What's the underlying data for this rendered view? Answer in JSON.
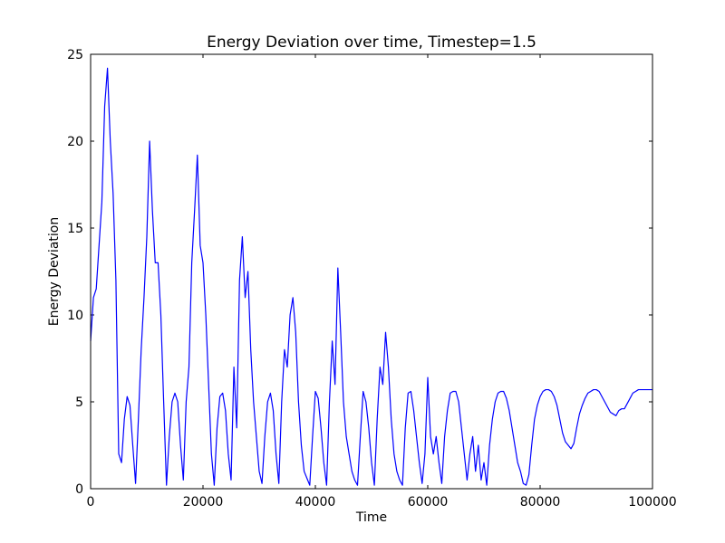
{
  "chart_data": {
    "type": "line",
    "title": "Energy Deviation over time, Timestep=1.5",
    "x_label": "Time",
    "y_label": "Energy Deviation",
    "color": "#0000ff",
    "xlim": [
      0,
      100000
    ],
    "ylim": [
      0,
      25
    ],
    "xticks": [
      0,
      20000,
      40000,
      60000,
      80000,
      100000
    ],
    "yticks": [
      0,
      5,
      10,
      15,
      20,
      25
    ],
    "grid": false,
    "x": [
      0,
      500,
      1000,
      1500,
      2000,
      2500,
      3000,
      3500,
      4000,
      4500,
      5000,
      5500,
      6000,
      6500,
      7000,
      7500,
      8000,
      8500,
      9000,
      9500,
      10000,
      10500,
      11000,
      11500,
      12000,
      12500,
      13000,
      13500,
      14000,
      14500,
      15000,
      15500,
      16000,
      16500,
      17000,
      17500,
      18000,
      18500,
      19000,
      19500,
      20000,
      20500,
      21000,
      21500,
      22000,
      22500,
      23000,
      23500,
      24000,
      24500,
      25000,
      25500,
      26000,
      26500,
      27000,
      27500,
      28000,
      28500,
      29000,
      29500,
      30000,
      30500,
      31000,
      31500,
      32000,
      32500,
      33000,
      33500,
      34000,
      34500,
      35000,
      35500,
      36000,
      36500,
      37000,
      37500,
      38000,
      38500,
      39000,
      39500,
      40000,
      40500,
      41000,
      41500,
      42000,
      42500,
      43000,
      43500,
      44000,
      44500,
      45000,
      45500,
      46000,
      46500,
      47000,
      47500,
      48000,
      48500,
      49000,
      49500,
      50000,
      50500,
      51000,
      51500,
      52000,
      52500,
      53000,
      53500,
      54000,
      54500,
      55000,
      55500,
      56000,
      56500,
      57000,
      57500,
      58000,
      58500,
      59000,
      59500,
      60000,
      60500,
      61000,
      61500,
      62000,
      62500,
      63000,
      63500,
      64000,
      64500,
      65000,
      65500,
      66000,
      66500,
      67000,
      67500,
      68000,
      68500,
      69000,
      69500,
      70000,
      70500,
      71000,
      71500,
      72000,
      72500,
      73000,
      73500,
      74000,
      74500,
      75000,
      75500,
      76000,
      76500,
      77000,
      77500,
      78000,
      78500,
      79000,
      79500,
      80000,
      80500,
      81000,
      81500,
      82000,
      82500,
      83000,
      83500,
      84000,
      84500,
      85000,
      85500,
      86000,
      86500,
      87000,
      87500,
      88000,
      88500,
      89000,
      89500,
      90000,
      90500,
      91000,
      91500,
      92000,
      92500,
      93000,
      93500,
      94000,
      94500,
      95000,
      95500,
      96000,
      96500,
      97000,
      97500,
      98000,
      98500,
      99000,
      99500,
      100000
    ],
    "values": [
      8.5,
      11,
      11.5,
      14,
      16.5,
      22,
      24.2,
      20,
      17,
      12,
      2,
      1.5,
      4,
      5.3,
      4.8,
      2.5,
      0.3,
      4,
      8,
      11,
      14.5,
      20,
      16,
      13,
      13,
      10,
      5,
      0.2,
      3,
      5,
      5.5,
      5,
      2.5,
      0.5,
      5,
      7,
      13,
      16,
      19.2,
      14,
      13,
      10,
      6,
      2,
      0.2,
      3.5,
      5.3,
      5.5,
      4.5,
      2,
      0.5,
      7,
      3.5,
      12,
      14.5,
      11,
      12.5,
      8,
      5,
      3,
      1,
      0.3,
      3,
      5,
      5.5,
      4.5,
      2,
      0.3,
      5,
      8,
      7,
      10,
      11,
      9,
      5,
      2.5,
      1,
      0.6,
      0.2,
      3,
      5.6,
      5.2,
      3.5,
      1.5,
      0.2,
      5,
      8.5,
      6,
      12.7,
      9,
      5,
      3,
      2,
      1,
      0.5,
      0.2,
      3,
      5.6,
      5,
      3.5,
      1.5,
      0.2,
      4,
      7,
      6,
      9,
      7,
      4,
      2,
      1,
      0.5,
      0.2,
      3.5,
      5.5,
      5.6,
      4.5,
      3,
      1.5,
      0.3,
      2,
      6.4,
      3,
      2,
      3,
      1.5,
      0.3,
      3,
      4.5,
      5.5,
      5.6,
      5.6,
      5,
      3.5,
      2,
      0.5,
      2,
      3,
      1,
      2.5,
      0.5,
      1.5,
      0.2,
      2.5,
      4,
      5,
      5.5,
      5.6,
      5.6,
      5.2,
      4.5,
      3.5,
      2.5,
      1.5,
      1,
      0.3,
      0.2,
      0.8,
      2.5,
      4,
      4.8,
      5.3,
      5.6,
      5.7,
      5.7,
      5.6,
      5.3,
      4.8,
      4,
      3.2,
      2.7,
      2.5,
      2.3,
      2.6,
      3.5,
      4.3,
      4.8,
      5.2,
      5.5,
      5.6,
      5.7,
      5.7,
      5.6,
      5.3,
      5,
      4.7,
      4.4,
      4.3,
      4.2,
      4.5,
      4.6,
      4.6,
      4.9,
      5.2,
      5.5,
      5.6,
      5.7,
      5.7,
      5.7,
      5.7,
      5.7,
      5.7
    ]
  }
}
